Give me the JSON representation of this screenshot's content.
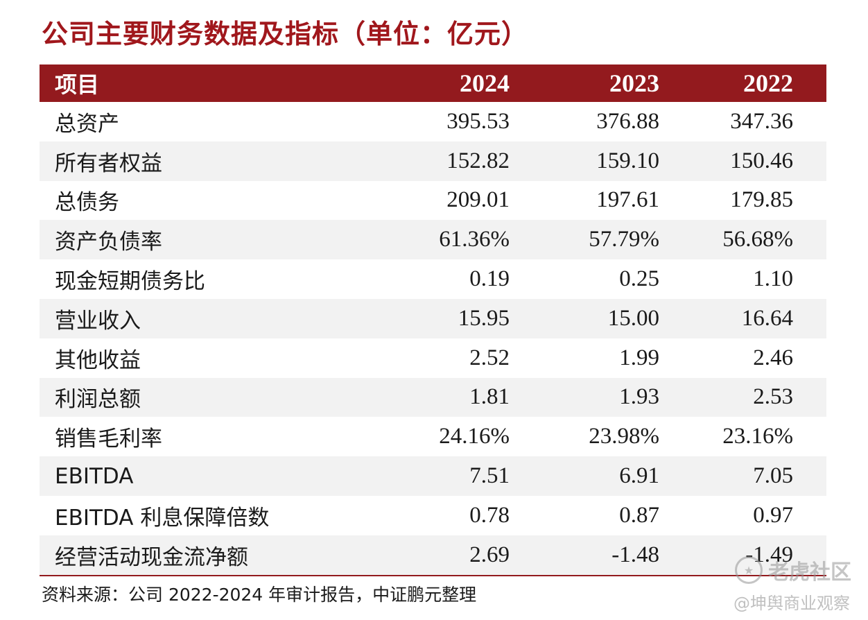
{
  "title": "公司主要财务数据及指标（单位：亿元）",
  "table": {
    "header": {
      "label": "项目",
      "y2024": "2024",
      "y2023": "2023",
      "y2022": "2022"
    },
    "rows": [
      {
        "label": "总资产",
        "y2024": "395.53",
        "y2023": "376.88",
        "y2022": "347.36"
      },
      {
        "label": "所有者权益",
        "y2024": "152.82",
        "y2023": "159.10",
        "y2022": "150.46"
      },
      {
        "label": "总债务",
        "y2024": "209.01",
        "y2023": "197.61",
        "y2022": "179.85"
      },
      {
        "label": "资产负债率",
        "y2024": "61.36%",
        "y2023": "57.79%",
        "y2022": "56.68%"
      },
      {
        "label": "现金短期债务比",
        "y2024": "0.19",
        "y2023": "0.25",
        "y2022": "1.10"
      },
      {
        "label": "营业收入",
        "y2024": "15.95",
        "y2023": "15.00",
        "y2022": "16.64"
      },
      {
        "label": "其他收益",
        "y2024": "2.52",
        "y2023": "1.99",
        "y2022": "2.46"
      },
      {
        "label": "利润总额",
        "y2024": "1.81",
        "y2023": "1.93",
        "y2022": "2.53"
      },
      {
        "label": "销售毛利率",
        "y2024": "24.16%",
        "y2023": "23.98%",
        "y2022": "23.16%"
      },
      {
        "label": "EBITDA",
        "y2024": "7.51",
        "y2023": "6.91",
        "y2022": "7.05"
      },
      {
        "label": "EBITDA 利息保障倍数",
        "y2024": "0.78",
        "y2023": "0.87",
        "y2022": "0.97"
      },
      {
        "label": "经营活动现金流净额",
        "y2024": "2.69",
        "y2023": "-1.48",
        "y2022": "-1.49"
      }
    ]
  },
  "source": "资料来源：公司 2022-2024 年审计报告，中证鹏元整理",
  "watermark": {
    "site": "老虎社区",
    "author": "@坤舆商业观察"
  },
  "colors": {
    "accent": "#931a1e",
    "title": "#a0171c",
    "alt_row": "#f2f2f2"
  }
}
